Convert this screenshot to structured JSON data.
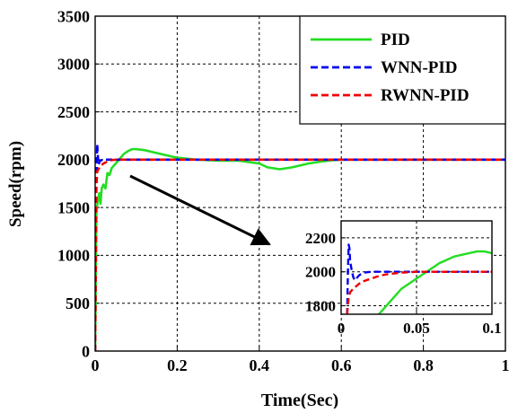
{
  "chart_data": [
    {
      "type": "line",
      "xlabel": "Time(Sec)",
      "ylabel": "Speed(rpm)",
      "xlim": [
        0,
        1
      ],
      "ylim": [
        0,
        3500
      ],
      "xticks": [
        0,
        0.2,
        0.4,
        0.6,
        0.8,
        1
      ],
      "xtick_labels": [
        "0",
        "0.2",
        "0.4",
        "0.6",
        "0.8",
        "1"
      ],
      "yticks": [
        0,
        500,
        1000,
        1500,
        2000,
        2500,
        3000,
        3500
      ],
      "ytick_labels": [
        "0",
        "500",
        "1000",
        "1500",
        "2000",
        "2500",
        "3000",
        "3500"
      ],
      "grid": true,
      "legend_position": "top-right",
      "series": [
        {
          "name": "PID",
          "color": "#22dd22",
          "style": "solid",
          "x": [
            0,
            0.003,
            0.006,
            0.01,
            0.013,
            0.016,
            0.02,
            0.025,
            0.03,
            0.035,
            0.04,
            0.05,
            0.06,
            0.07,
            0.08,
            0.09,
            0.1,
            0.12,
            0.14,
            0.16,
            0.18,
            0.2,
            0.25,
            0.3,
            0.35,
            0.4,
            0.42,
            0.45,
            0.48,
            0.5,
            0.52,
            0.55,
            0.58,
            0.6,
            0.65,
            0.7,
            0.8,
            0.9,
            1.0
          ],
          "y": [
            0,
            1450,
            1560,
            1650,
            1540,
            1700,
            1740,
            1700,
            1860,
            1840,
            1910,
            1960,
            2010,
            2060,
            2090,
            2110,
            2110,
            2100,
            2080,
            2060,
            2040,
            2020,
            2000,
            1990,
            1990,
            1960,
            1920,
            1900,
            1920,
            1940,
            1960,
            1980,
            1995,
            2000,
            2000,
            2000,
            2000,
            2000,
            2000
          ]
        },
        {
          "name": "WNN-PID",
          "color": "#0000ee",
          "style": "dashed",
          "x": [
            0,
            0.002,
            0.004,
            0.005,
            0.006,
            0.008,
            0.012,
            0.02,
            0.05,
            0.1,
            0.2,
            0.3,
            0.4,
            0.5,
            0.6,
            0.7,
            0.8,
            0.9,
            1.0
          ],
          "y": [
            0,
            1500,
            2000,
            2160,
            2080,
            1950,
            1990,
            2000,
            2000,
            2000,
            2000,
            2000,
            2000,
            2000,
            2000,
            2000,
            2000,
            2000,
            2000
          ]
        },
        {
          "name": "RWNN-PID",
          "color": "#ee0000",
          "style": "dashed",
          "x": [
            0,
            0.003,
            0.005,
            0.008,
            0.012,
            0.02,
            0.03,
            0.04,
            0.05,
            0.1,
            0.2,
            0.3,
            0.4,
            0.5,
            0.6,
            0.7,
            0.8,
            0.9,
            1.0
          ],
          "y": [
            0,
            1700,
            1880,
            1900,
            1930,
            1960,
            1980,
            1995,
            2000,
            2000,
            2000,
            2000,
            2000,
            2000,
            2000,
            2000,
            2000,
            2000,
            2000
          ]
        }
      ],
      "annotation": "arrow from main curve to inset zoom"
    },
    {
      "type": "line",
      "inset": true,
      "xlim": [
        0,
        0.1
      ],
      "ylim": [
        1750,
        2300
      ],
      "xticks": [
        0,
        0.05,
        0.1
      ],
      "xtick_labels": [
        "0",
        "0.05",
        "0.1"
      ],
      "yticks": [
        1800,
        2000,
        2200
      ],
      "ytick_labels": [
        "1800",
        "2000",
        "2200"
      ],
      "grid": true,
      "series": [
        {
          "name": "PID",
          "color": "#22dd22",
          "style": "solid",
          "x": [
            0.025,
            0.03,
            0.035,
            0.04,
            0.045,
            0.05,
            0.055,
            0.06,
            0.065,
            0.07,
            0.075,
            0.08,
            0.085,
            0.09,
            0.095,
            0.1
          ],
          "y": [
            1750,
            1800,
            1850,
            1900,
            1930,
            1960,
            1990,
            2020,
            2050,
            2070,
            2090,
            2100,
            2110,
            2120,
            2120,
            2110
          ]
        },
        {
          "name": "WNN-PID",
          "color": "#0000ee",
          "style": "dashed",
          "x": [
            0.004,
            0.0045,
            0.005,
            0.0055,
            0.006,
            0.007,
            0.008,
            0.009,
            0.01,
            0.012,
            0.015,
            0.02,
            0.03,
            0.05,
            0.1
          ],
          "y": [
            1750,
            2000,
            2160,
            2140,
            2060,
            2010,
            1970,
            1950,
            1960,
            1980,
            1995,
            2000,
            2000,
            2000,
            2000
          ]
        },
        {
          "name": "RWNN-PID",
          "color": "#ee0000",
          "style": "dashed",
          "x": [
            0.004,
            0.005,
            0.006,
            0.008,
            0.01,
            0.012,
            0.015,
            0.02,
            0.025,
            0.03,
            0.04,
            0.05,
            0.1
          ],
          "y": [
            1750,
            1850,
            1880,
            1900,
            1915,
            1930,
            1945,
            1960,
            1975,
            1985,
            1995,
            2000,
            2000
          ]
        }
      ]
    }
  ]
}
